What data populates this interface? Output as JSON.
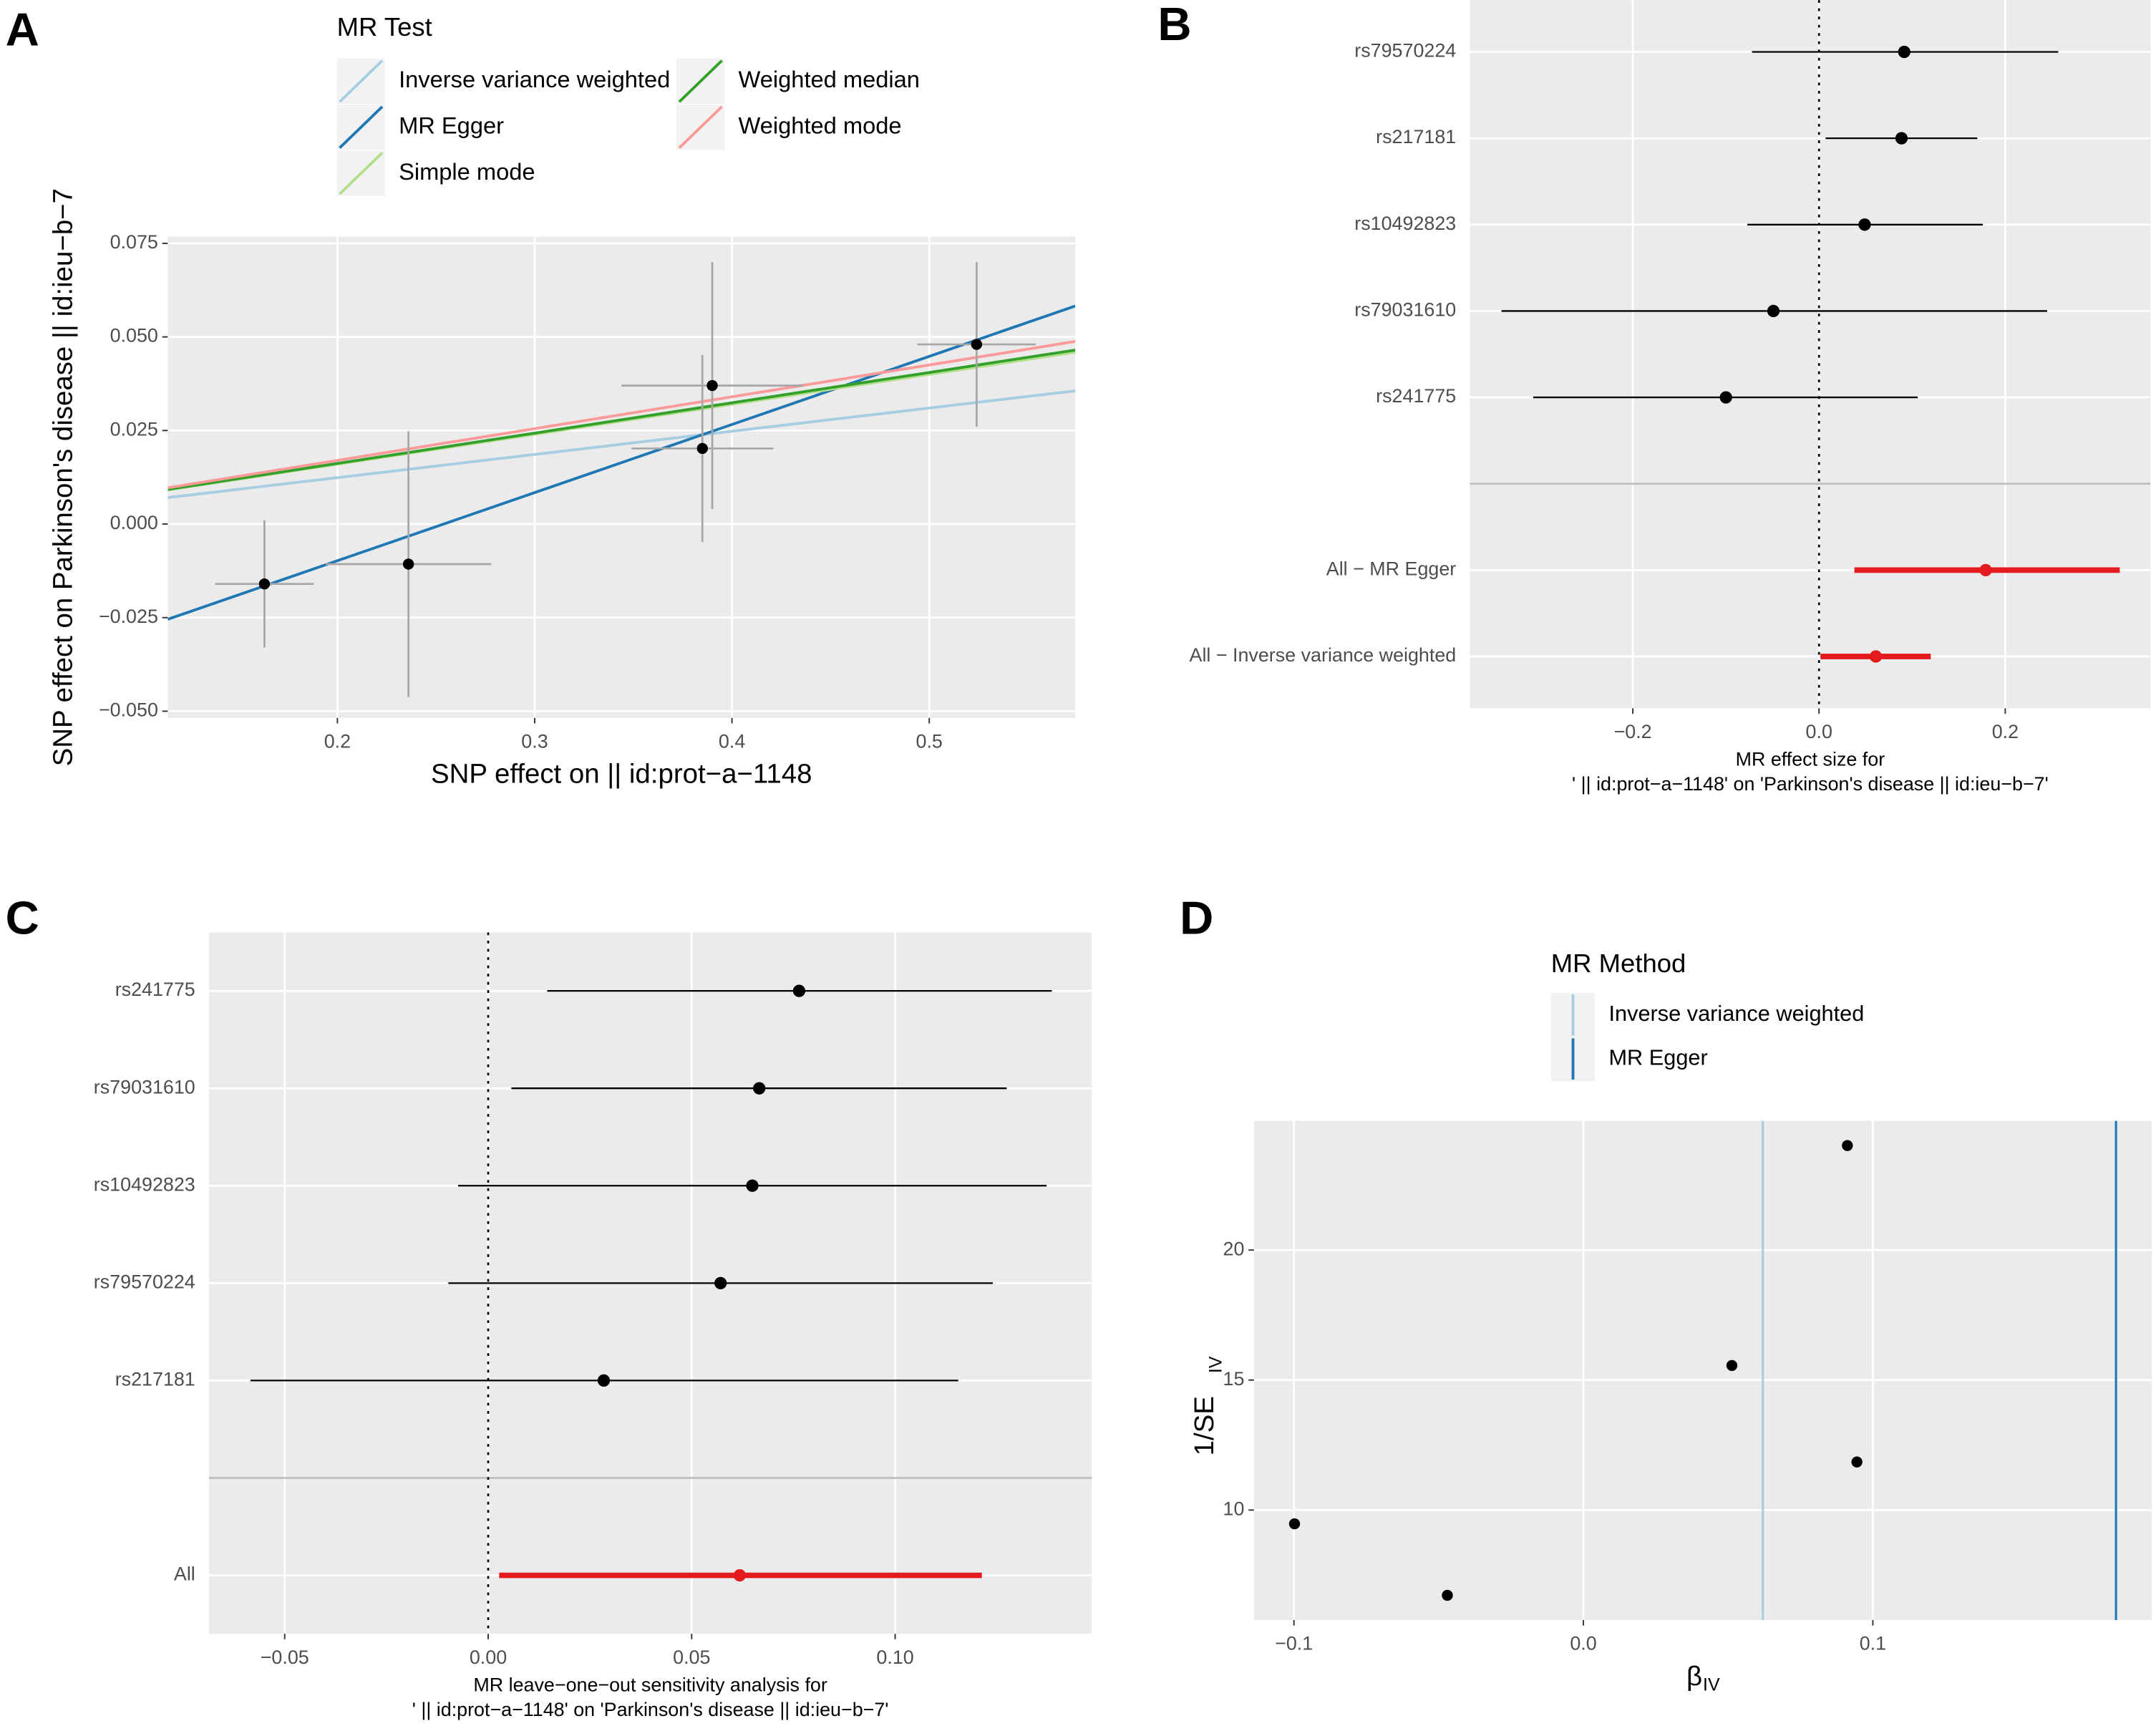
{
  "chart_data": [
    {
      "type": "scatter",
      "tag": "A",
      "xlabel": "SNP effect on  || id:prot−a−1148",
      "ylabel": "SNP effect on Parkinson's disease || id:ieu−b−7",
      "x": [
        0.163,
        0.236,
        0.385,
        0.39,
        0.524
      ],
      "values": [
        -0.016,
        -0.0107,
        0.0202,
        0.037,
        0.048
      ],
      "x_err": [
        0.025,
        0.042,
        0.036,
        0.046,
        0.03
      ],
      "y_err": [
        0.017,
        0.0355,
        0.025,
        0.033,
        0.022
      ],
      "point_color": "#000000",
      "errorbar_color": "#a6a6a6",
      "xlim": [
        0.114,
        0.574
      ],
      "ylim": [
        -0.0518,
        0.0768
      ],
      "xticks": [
        0.2,
        0.3,
        0.4,
        0.5
      ],
      "yticks": [
        {
          "value": -0.05,
          "label": "−0.050"
        },
        {
          "value": -0.025,
          "label": "−0.025"
        },
        {
          "value": 0,
          "label": "0.000"
        },
        0.025,
        {
          "value": 0.05,
          "label": "0.050"
        },
        0.075
      ],
      "grid": true,
      "legend_title": "MR Test",
      "lines": [
        {
          "name": "Inverse variance weighted",
          "color": "#a6cee3",
          "slope": 0.062,
          "intercept": 0
        },
        {
          "name": "MR Egger",
          "color": "#1f78b4",
          "slope": 0.182,
          "intercept": -0.0462
        },
        {
          "name": "Simple mode",
          "color": "#b2df8a",
          "slope": 0.08,
          "intercept": 0
        },
        {
          "name": "Weighted median",
          "color": "#33a02c",
          "slope": 0.081,
          "intercept": 0
        },
        {
          "name": "Weighted mode",
          "color": "#fb9a99",
          "slope": 0.085,
          "intercept": 0
        }
      ]
    },
    {
      "type": "forest",
      "tag": "B",
      "xlabel": [
        "MR effect size for",
        "' || id:prot−a−1148' on 'Parkinson's disease || id:ieu−b−7'"
      ],
      "categories": [
        "rs79570224",
        "rs217181",
        "rs10492823",
        "rs79031610",
        "rs241775",
        null,
        "All − MR Egger",
        "All − Inverse variance weighted"
      ],
      "values": [
        0.0915,
        0.0886,
        0.049,
        -0.049,
        -0.1,
        null,
        0.179,
        0.061
      ],
      "lower": [
        -0.072,
        0.007,
        -0.077,
        -0.341,
        -0.307,
        null,
        0.038,
        0.0015
      ],
      "upper": [
        0.257,
        0.17,
        0.176,
        0.245,
        0.106,
        null,
        0.323,
        0.12
      ],
      "colors": [
        "#000000",
        "#000000",
        "#000000",
        "#000000",
        "#000000",
        null,
        "#e41a1c",
        "#e41a1c"
      ],
      "xlim": [
        -0.375,
        0.356
      ],
      "xticks": [
        {
          "value": -0.2,
          "label": "−0.2"
        },
        {
          "value": 0,
          "label": "0.0"
        },
        0.2
      ],
      "refline": 0,
      "grid": true
    },
    {
      "type": "forest",
      "tag": "C",
      "xlabel": [
        "MR leave−one−out sensitivity analysis for",
        "' || id:prot−a−1148' on 'Parkinson's disease || id:ieu−b−7'"
      ],
      "categories": [
        "rs241775",
        "rs79031610",
        "rs10492823",
        "rs79570224",
        "rs217181",
        null,
        "All"
      ],
      "values": [
        0.0764,
        0.0666,
        0.0649,
        0.0571,
        0.0284,
        null,
        0.0618
      ],
      "lower": [
        0.0145,
        0.0057,
        -0.0074,
        -0.0098,
        -0.0584,
        null,
        0.0027
      ],
      "upper": [
        0.1385,
        0.1274,
        0.1372,
        0.124,
        0.1155,
        null,
        0.1213
      ],
      "colors": [
        "#000000",
        "#000000",
        "#000000",
        "#000000",
        "#000000",
        null,
        "#e41a1c"
      ],
      "xlim": [
        -0.0686,
        0.1483
      ],
      "xticks": [
        {
          "value": -0.05,
          "label": "−0.05"
        },
        {
          "value": 0,
          "label": "0.00"
        },
        0.05,
        {
          "value": 0.1,
          "label": "0.10"
        }
      ],
      "refline": 0,
      "grid": true
    },
    {
      "type": "scatter",
      "tag": "D",
      "xlabel": "β",
      "xlabel_sub": "IV",
      "ylabel": "1/SE",
      "ylabel_sub": "IV",
      "x": [
        0.0912,
        0.0513,
        0.0945,
        -0.0998,
        -0.047
      ],
      "values": [
        24.02,
        15.56,
        11.85,
        9.47,
        6.72
      ],
      "point_color": "#000000",
      "xlim": [
        -0.1138,
        0.1964
      ],
      "ylim": [
        5.77,
        24.97
      ],
      "xticks": [
        {
          "value": -0.1,
          "label": "−0.1"
        },
        {
          "value": 0,
          "label": "0.0"
        },
        {
          "value": 0.1,
          "label": "0.1"
        }
      ],
      "yticks": [
        10,
        15,
        20
      ],
      "grid": true,
      "legend_title": "MR Method",
      "vlines": [
        {
          "name": "Inverse variance weighted",
          "color": "#a6cee3",
          "value": 0.062
        },
        {
          "name": "MR Egger",
          "color": "#1f78b4",
          "value": 0.184
        }
      ]
    }
  ]
}
